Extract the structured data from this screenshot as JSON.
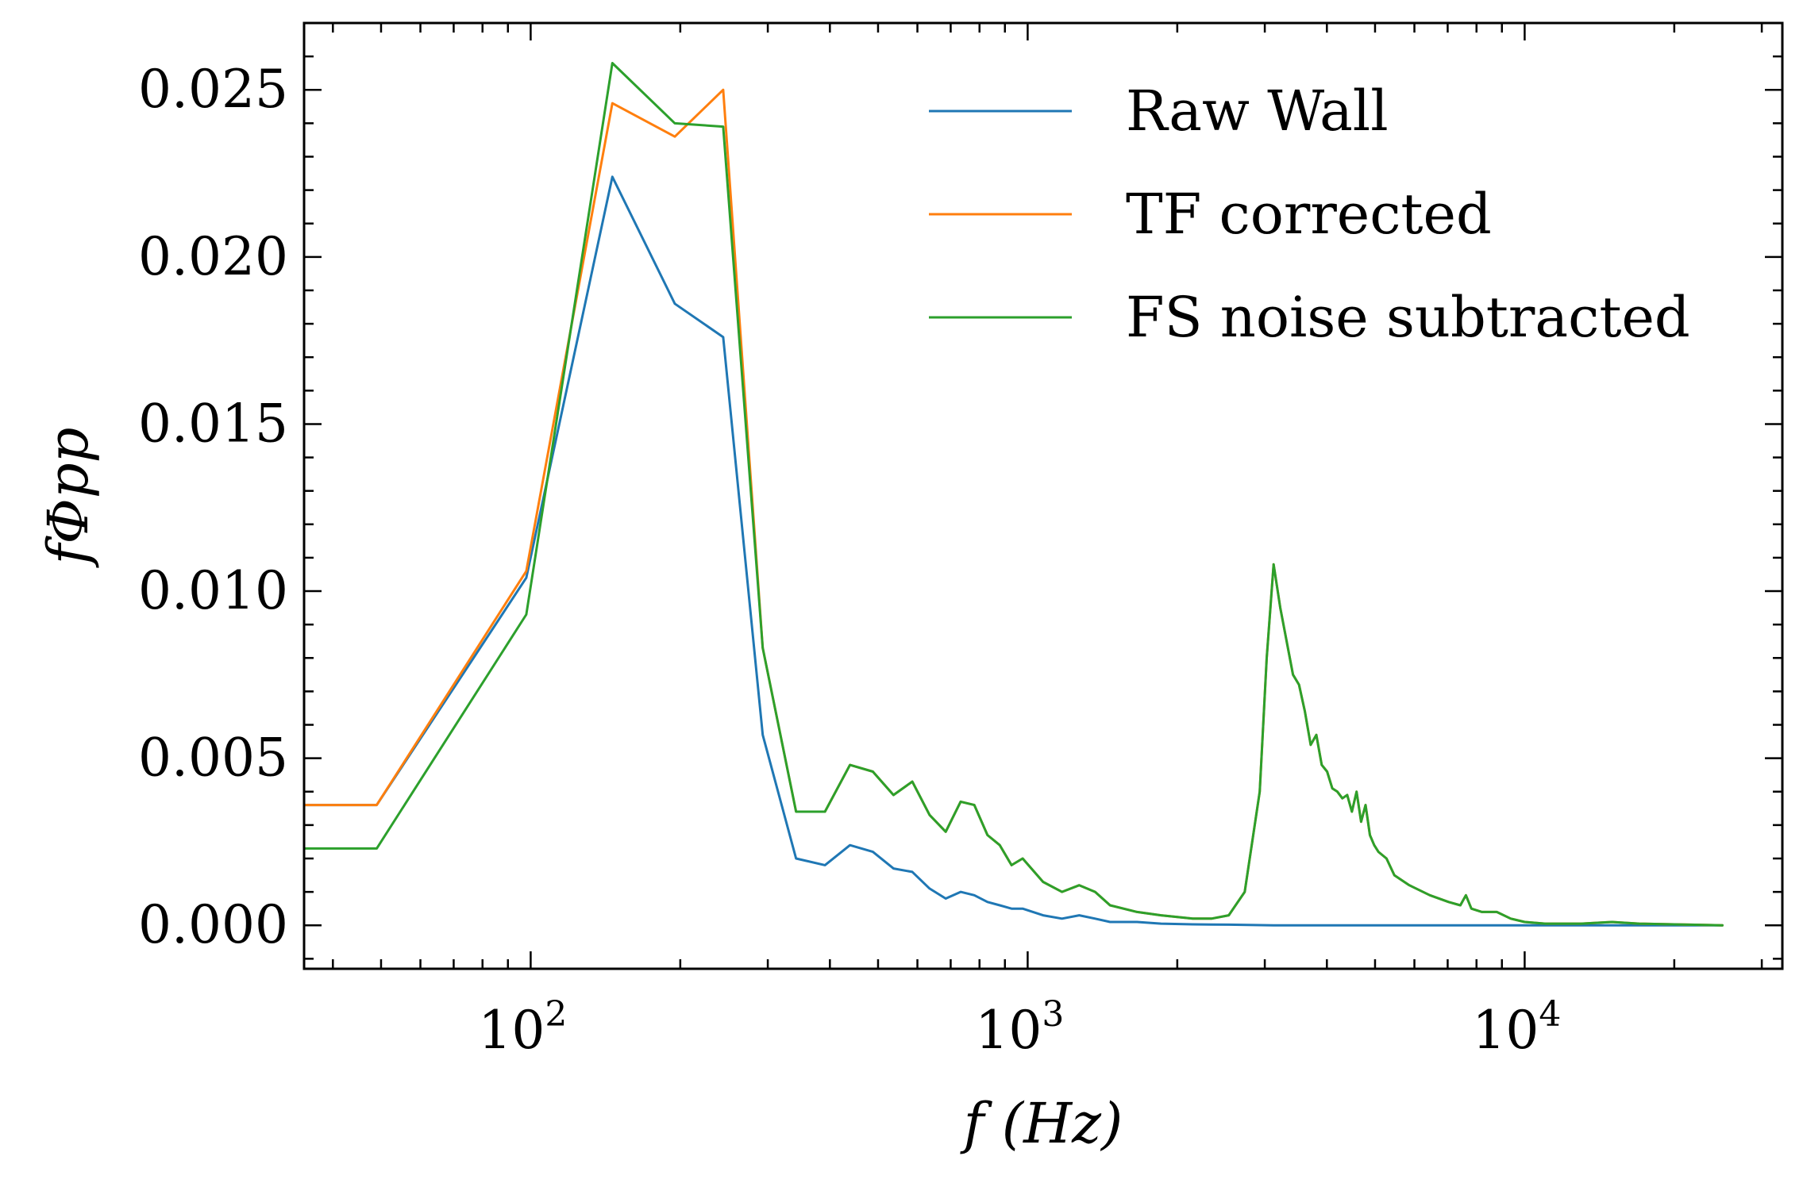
{
  "chart_data": {
    "type": "line",
    "title": "",
    "xlabel": "f (Hz)",
    "ylabel": "fΦpp",
    "xscale": "log",
    "xlim": [
      35,
      33000
    ],
    "ylim": [
      -0.0013,
      0.027
    ],
    "grid": false,
    "legend_position": "top-right",
    "xticks": [
      {
        "value": 100,
        "base": "10",
        "exp": "2"
      },
      {
        "value": 1000,
        "base": "10",
        "exp": "3"
      },
      {
        "value": 10000,
        "base": "10",
        "exp": "4"
      }
    ],
    "yticks": [
      {
        "value": 0,
        "label": "0.000"
      },
      {
        "value": 0.005,
        "label": "0.005"
      },
      {
        "value": 0.01,
        "label": "0.010"
      },
      {
        "value": 0.015,
        "label": "0.015"
      },
      {
        "value": 0.02,
        "label": "0.020"
      },
      {
        "value": 0.025,
        "label": "0.025"
      }
    ],
    "series": [
      {
        "name": "Raw Wall",
        "color": "#1f77b4",
        "points": [
          [
            35,
            0.0036
          ],
          [
            49,
            0.0036
          ],
          [
            98,
            0.0104
          ],
          [
            146,
            0.0224
          ],
          [
            195,
            0.0186
          ],
          [
            244,
            0.0176
          ],
          [
            293,
            0.0057
          ],
          [
            342,
            0.002
          ],
          [
            391,
            0.0018
          ],
          [
            439,
            0.0024
          ],
          [
            488,
            0.0022
          ],
          [
            537,
            0.0017
          ],
          [
            586,
            0.0016
          ],
          [
            635,
            0.0011
          ],
          [
            684,
            0.0008
          ],
          [
            733,
            0.001
          ],
          [
            781,
            0.0009
          ],
          [
            830,
            0.0007
          ],
          [
            879,
            0.0006
          ],
          [
            928,
            0.0005
          ],
          [
            977,
            0.0005
          ],
          [
            1074,
            0.0003
          ],
          [
            1172,
            0.0002
          ],
          [
            1270,
            0.0003
          ],
          [
            1367,
            0.0002
          ],
          [
            1465,
            0.0001
          ],
          [
            1660,
            0.0001
          ],
          [
            1855,
            5e-05
          ],
          [
            2148,
            3e-05
          ],
          [
            2539,
            2e-05
          ],
          [
            3125,
            0.0
          ],
          [
            5000,
            0.0
          ],
          [
            10000,
            0.0
          ],
          [
            15000,
            0.0
          ],
          [
            25000,
            0.0
          ]
        ]
      },
      {
        "name": "TF corrected",
        "color": "#ff7f0e",
        "points": [
          [
            35,
            0.0036
          ],
          [
            49,
            0.0036
          ],
          [
            98,
            0.0106
          ],
          [
            146,
            0.0246
          ],
          [
            195,
            0.0236
          ],
          [
            244,
            0.025
          ],
          [
            293,
            0.0083
          ],
          [
            342,
            0.0034
          ],
          [
            391,
            0.0034
          ],
          [
            439,
            0.0048
          ],
          [
            488,
            0.0046
          ],
          [
            537,
            0.0039
          ],
          [
            586,
            0.0043
          ],
          [
            635,
            0.0033
          ],
          [
            684,
            0.0028
          ],
          [
            733,
            0.0037
          ],
          [
            781,
            0.0036
          ],
          [
            830,
            0.0027
          ],
          [
            879,
            0.0024
          ],
          [
            928,
            0.0018
          ],
          [
            977,
            0.002
          ],
          [
            1074,
            0.0013
          ],
          [
            1172,
            0.001
          ],
          [
            1270,
            0.0012
          ],
          [
            1367,
            0.001
          ],
          [
            1465,
            0.0006
          ],
          [
            1660,
            0.0004
          ],
          [
            1855,
            0.0003
          ],
          [
            2148,
            0.0002
          ],
          [
            2343,
            0.0002
          ],
          [
            2539,
            0.0003
          ],
          [
            2734,
            0.001
          ],
          [
            2930,
            0.004
          ],
          [
            3027,
            0.008
          ],
          [
            3125,
            0.0108
          ],
          [
            3223,
            0.0095
          ],
          [
            3320,
            0.0085
          ],
          [
            3418,
            0.0075
          ],
          [
            3516,
            0.0072
          ],
          [
            3613,
            0.0064
          ],
          [
            3711,
            0.0054
          ],
          [
            3809,
            0.0057
          ],
          [
            3906,
            0.0048
          ],
          [
            4004,
            0.0046
          ],
          [
            4102,
            0.0041
          ],
          [
            4199,
            0.004
          ],
          [
            4297,
            0.0038
          ],
          [
            4395,
            0.0039
          ],
          [
            4492,
            0.0034
          ],
          [
            4590,
            0.004
          ],
          [
            4688,
            0.0031
          ],
          [
            4785,
            0.0036
          ],
          [
            4883,
            0.0027
          ],
          [
            4980,
            0.0024
          ],
          [
            5078,
            0.0022
          ],
          [
            5273,
            0.002
          ],
          [
            5469,
            0.0015
          ],
          [
            5859,
            0.0012
          ],
          [
            6445,
            0.0009
          ],
          [
            7031,
            0.0007
          ],
          [
            7422,
            0.0006
          ],
          [
            7617,
            0.0009
          ],
          [
            7812,
            0.0005
          ],
          [
            8203,
            0.0004
          ],
          [
            8789,
            0.0004
          ],
          [
            9375,
            0.0002
          ],
          [
            10000,
            0.0001
          ],
          [
            11000,
            5e-05
          ],
          [
            13000,
            5e-05
          ],
          [
            15000,
            0.0001
          ],
          [
            17000,
            5e-05
          ],
          [
            20000,
            3e-05
          ],
          [
            25000,
            0.0
          ]
        ]
      },
      {
        "name": "FS noise subtracted",
        "color": "#2ca02c",
        "points": [
          [
            35,
            0.0023
          ],
          [
            49,
            0.0023
          ],
          [
            98,
            0.0093
          ],
          [
            146,
            0.0258
          ],
          [
            195,
            0.024
          ],
          [
            244,
            0.0239
          ],
          [
            293,
            0.0083
          ],
          [
            342,
            0.0034
          ],
          [
            391,
            0.0034
          ],
          [
            439,
            0.0048
          ],
          [
            488,
            0.0046
          ],
          [
            537,
            0.0039
          ],
          [
            586,
            0.0043
          ],
          [
            635,
            0.0033
          ],
          [
            684,
            0.0028
          ],
          [
            733,
            0.0037
          ],
          [
            781,
            0.0036
          ],
          [
            830,
            0.0027
          ],
          [
            879,
            0.0024
          ],
          [
            928,
            0.0018
          ],
          [
            977,
            0.002
          ],
          [
            1074,
            0.0013
          ],
          [
            1172,
            0.001
          ],
          [
            1270,
            0.0012
          ],
          [
            1367,
            0.001
          ],
          [
            1465,
            0.0006
          ],
          [
            1660,
            0.0004
          ],
          [
            1855,
            0.0003
          ],
          [
            2148,
            0.0002
          ],
          [
            2343,
            0.0002
          ],
          [
            2539,
            0.0003
          ],
          [
            2734,
            0.001
          ],
          [
            2930,
            0.004
          ],
          [
            3027,
            0.008
          ],
          [
            3125,
            0.0108
          ],
          [
            3223,
            0.0095
          ],
          [
            3320,
            0.0085
          ],
          [
            3418,
            0.0075
          ],
          [
            3516,
            0.0072
          ],
          [
            3613,
            0.0064
          ],
          [
            3711,
            0.0054
          ],
          [
            3809,
            0.0057
          ],
          [
            3906,
            0.0048
          ],
          [
            4004,
            0.0046
          ],
          [
            4102,
            0.0041
          ],
          [
            4199,
            0.004
          ],
          [
            4297,
            0.0038
          ],
          [
            4395,
            0.0039
          ],
          [
            4492,
            0.0034
          ],
          [
            4590,
            0.004
          ],
          [
            4688,
            0.0031
          ],
          [
            4785,
            0.0036
          ],
          [
            4883,
            0.0027
          ],
          [
            4980,
            0.0024
          ],
          [
            5078,
            0.0022
          ],
          [
            5273,
            0.002
          ],
          [
            5469,
            0.0015
          ],
          [
            5859,
            0.0012
          ],
          [
            6445,
            0.0009
          ],
          [
            7031,
            0.0007
          ],
          [
            7422,
            0.0006
          ],
          [
            7617,
            0.0009
          ],
          [
            7812,
            0.0005
          ],
          [
            8203,
            0.0004
          ],
          [
            8789,
            0.0004
          ],
          [
            9375,
            0.0002
          ],
          [
            10000,
            0.0001
          ],
          [
            11000,
            5e-05
          ],
          [
            13000,
            5e-05
          ],
          [
            15000,
            0.0001
          ],
          [
            17000,
            5e-05
          ],
          [
            20000,
            3e-05
          ],
          [
            25000,
            0.0
          ]
        ]
      }
    ]
  }
}
